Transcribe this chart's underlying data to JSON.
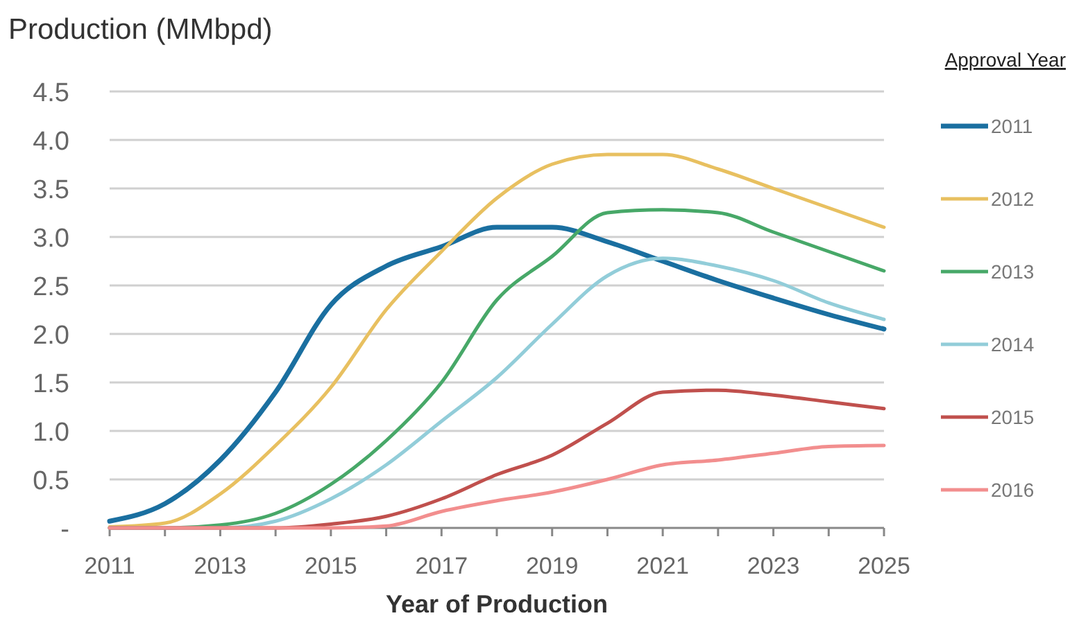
{
  "chart_data": {
    "type": "line",
    "title": "Production (MMbpd)",
    "xlabel": "Year of Production",
    "legend_title": "Approval Year",
    "legend": "right",
    "grid": "y",
    "line_style": "solid",
    "x": [
      2011,
      2012,
      2013,
      2014,
      2015,
      2016,
      2017,
      2018,
      2019,
      2020,
      2021,
      2022,
      2023,
      2024,
      2025
    ],
    "xlim": [
      2011,
      2025
    ],
    "xticks": [
      2011,
      {
        "value": 2012,
        "label": null
      },
      2013,
      {
        "value": 2014,
        "label": null
      },
      2015,
      {
        "value": 2016,
        "label": null
      },
      2017,
      {
        "value": 2018,
        "label": null
      },
      2019,
      {
        "value": 2020,
        "label": null
      },
      2021,
      {
        "value": 2022,
        "label": null
      },
      2023,
      {
        "value": 2024,
        "label": null
      },
      2025
    ],
    "ylim": [
      0,
      4.5
    ],
    "yticks": [
      {
        "value": 0,
        "label": "-"
      },
      0.5,
      {
        "value": 1,
        "label": "1.0"
      },
      1.5,
      {
        "value": 2,
        "label": "2.0"
      },
      2.5,
      {
        "value": 3,
        "label": "3.0"
      },
      3.5,
      {
        "value": 4,
        "label": "4.0"
      },
      4.5
    ],
    "series": [
      {
        "name": "2011",
        "color": "#1a6fa0",
        "values": [
          0.07,
          0.25,
          0.7,
          1.4,
          2.3,
          2.7,
          2.9,
          3.1,
          3.1,
          2.95,
          2.75,
          2.55,
          2.37,
          2.2,
          2.05
        ]
      },
      {
        "name": "2012",
        "color": "#e8c060",
        "values": [
          0.01,
          0.05,
          0.35,
          0.85,
          1.45,
          2.25,
          2.85,
          3.4,
          3.75,
          3.85,
          3.85,
          3.7,
          3.5,
          3.3,
          3.1
        ]
      },
      {
        "name": "2013",
        "color": "#47a868",
        "values": [
          0,
          0,
          0.03,
          0.15,
          0.45,
          0.9,
          1.5,
          2.35,
          2.8,
          3.25,
          3.28,
          3.25,
          3.05,
          2.85,
          2.65
        ]
      },
      {
        "name": "2014",
        "color": "#92cdd9",
        "values": [
          0,
          0,
          0,
          0.07,
          0.3,
          0.65,
          1.1,
          1.55,
          2.1,
          2.6,
          2.78,
          2.7,
          2.55,
          2.32,
          2.15
        ]
      },
      {
        "name": "2015",
        "color": "#c0504d",
        "values": [
          0,
          0,
          0,
          0,
          0.04,
          0.12,
          0.3,
          0.55,
          0.75,
          1.08,
          1.4,
          1.42,
          1.37,
          1.3,
          1.23
        ]
      },
      {
        "name": "2016",
        "color": "#f28e8e",
        "values": [
          0,
          0,
          0,
          0,
          0,
          0.02,
          0.17,
          0.28,
          0.37,
          0.5,
          0.65,
          0.7,
          0.77,
          0.84,
          0.85
        ]
      }
    ]
  }
}
